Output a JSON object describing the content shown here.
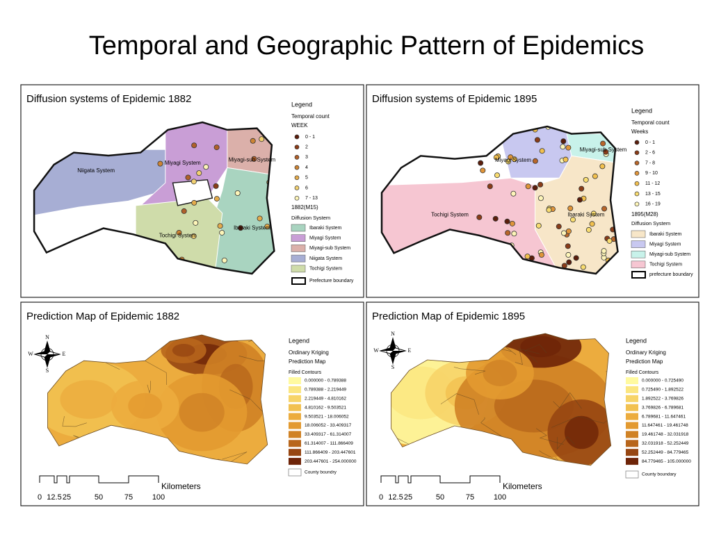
{
  "title": "Temporal and Geographic Pattern of Epidemics",
  "panels": [
    {
      "title": "Diffusion systems of Epidemic 1882",
      "legend": {
        "heading": "Legend",
        "subheading": "Temporal count",
        "unit": "WEEK",
        "counts": [
          {
            "label": "0 - 1",
            "color": "#5b1e0c"
          },
          {
            "label": "2",
            "color": "#8a3c18"
          },
          {
            "label": "3",
            "color": "#b0602a"
          },
          {
            "label": "4",
            "color": "#cd8434"
          },
          {
            "label": "5",
            "color": "#e3ab4c"
          },
          {
            "label": "6",
            "color": "#f2d172"
          },
          {
            "label": "7 - 13",
            "color": "#fdf5b8"
          }
        ],
        "period": "1882(M15)",
        "system_heading": "Diffusion System",
        "systems": [
          {
            "label": "Ibaraki System",
            "color": "#a9d4c0"
          },
          {
            "label": "Miyagi System",
            "color": "#c99ed6"
          },
          {
            "label": "Miyagi-sub System",
            "color": "#dbb0aa"
          },
          {
            "label": "Niigata System",
            "color": "#a7aed4"
          },
          {
            "label": "Tochigi System",
            "color": "#cfdcaa"
          }
        ],
        "boundary": "Prefecture boundary"
      },
      "region_labels": [
        "Niigata System",
        "Miyagi System",
        "Miyagi-sub System",
        "Tochigi System",
        "Ibaraki System"
      ]
    },
    {
      "title": "Diffusion systems of Epidemic 1895",
      "legend": {
        "heading": "Legend",
        "subheading": "Temporal count",
        "unit": "Weeks",
        "counts": [
          {
            "label": "0 - 1",
            "color": "#5b1e0c"
          },
          {
            "label": "2 - 6",
            "color": "#8a3c18"
          },
          {
            "label": "7 - 8",
            "color": "#b8662a"
          },
          {
            "label": "9 - 10",
            "color": "#e0953a"
          },
          {
            "label": "11 - 12",
            "color": "#f2c04e"
          },
          {
            "label": "13 - 15",
            "color": "#f8dc70"
          },
          {
            "label": "16 - 19",
            "color": "#fdf5b8"
          }
        ],
        "period": "1895(M28)",
        "system_heading": "Diffusion System",
        "systems": [
          {
            "label": "Ibaraki System",
            "color": "#f7e6c8"
          },
          {
            "label": "Miyagi System",
            "color": "#c8c8f0"
          },
          {
            "label": "Miyagi-sub System",
            "color": "#c8f2ea"
          },
          {
            "label": "Tochigi System",
            "color": "#f6c6d2"
          }
        ],
        "boundary": "prefecture boundary"
      },
      "region_labels": [
        "Miyagi System",
        "Miyagi-sub System",
        "Tochigi System",
        "Ibaraki System"
      ]
    },
    {
      "title": "Prediction Map of Epidemic 1882",
      "legend": {
        "heading": "Legend",
        "subheading": "Ordinary Kriging",
        "unit": "Prediction Map",
        "contour_heading": "Filled Contours",
        "contours": [
          {
            "label": "0.000000 - 0.789388",
            "color": "#fffaa0"
          },
          {
            "label": "0.789388 - 2.219449",
            "color": "#fbe680"
          },
          {
            "label": "2.219449 - 4.810162",
            "color": "#f7d468"
          },
          {
            "label": "4.810162 - 9.503521",
            "color": "#f2c150"
          },
          {
            "label": "9.503521 - 18.006052",
            "color": "#ecac3e"
          },
          {
            "label": "18.006052 - 33.409317",
            "color": "#e39a30"
          },
          {
            "label": "33.409317 - 61.314007",
            "color": "#d08225"
          },
          {
            "label": "61.314007 - 111.866409",
            "color": "#b8661c"
          },
          {
            "label": "111.866409 - 203.447601",
            "color": "#974612"
          },
          {
            "label": "203.447601 - 254.000000",
            "color": "#6e2408"
          }
        ],
        "boundary": "County boundry"
      },
      "compass": [
        "N",
        "E",
        "S",
        "W"
      ],
      "scale": {
        "unit": "Kilometers",
        "ticks": [
          "0",
          "12.5",
          "25",
          "50",
          "75",
          "100"
        ]
      }
    },
    {
      "title": "Prediction Map of Epidemic 1895",
      "legend": {
        "heading": "Legend",
        "subheading": "Ordinary Kriging",
        "unit": "Prediction Map",
        "contour_heading": "Filled Contours",
        "contours": [
          {
            "label": "0.000000 - 0.725490",
            "color": "#fffaa0"
          },
          {
            "label": "0.725490 - 1.892522",
            "color": "#fbe680"
          },
          {
            "label": "1.892522 - 3.769826",
            "color": "#f7d468"
          },
          {
            "label": "3.769826 - 6.789681",
            "color": "#f2c150"
          },
          {
            "label": "6.789681 - 11.647461",
            "color": "#ecac3e"
          },
          {
            "label": "11.647461 - 19.461748",
            "color": "#e39a30"
          },
          {
            "label": "19.461748 - 32.031918",
            "color": "#d08225"
          },
          {
            "label": "32.031918 - 52.252449",
            "color": "#b8661c"
          },
          {
            "label": "52.252449 - 84.779465",
            "color": "#974612"
          },
          {
            "label": "84.779465 - 105.000000",
            "color": "#6e2408"
          }
        ],
        "boundary": "County boundary"
      },
      "compass": [
        "N",
        "E",
        "S",
        "W"
      ],
      "scale": {
        "unit": "Kilometers",
        "ticks": [
          "0",
          "12.5",
          "25",
          "50",
          "75",
          "100"
        ]
      }
    }
  ]
}
